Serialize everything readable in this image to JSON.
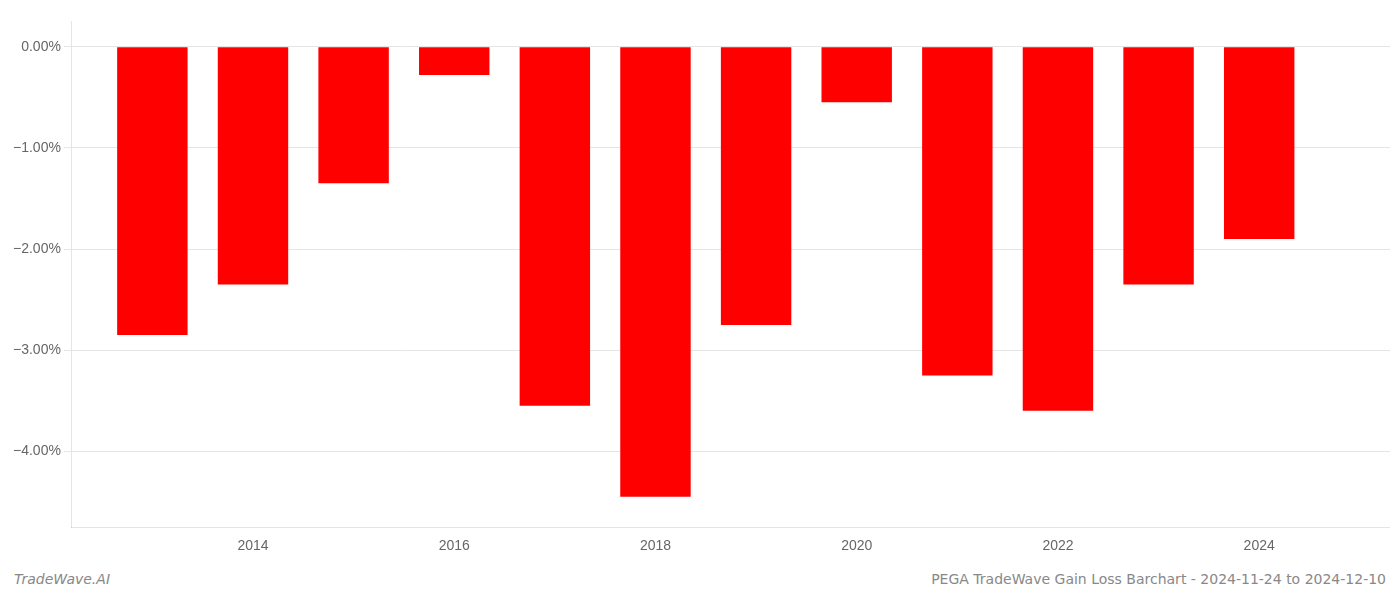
{
  "chart_data": {
    "type": "bar",
    "x": [
      2013,
      2014,
      2015,
      2016,
      2017,
      2018,
      2019,
      2020,
      2021,
      2022,
      2023,
      2024
    ],
    "values": [
      -2.85,
      -2.35,
      -1.35,
      -0.28,
      -3.55,
      -4.45,
      -2.75,
      -0.55,
      -3.25,
      -3.6,
      -2.35,
      -1.9
    ],
    "color": "#ff0000",
    "xlim": [
      2012.2,
      2025.3
    ],
    "xticks": [
      2014,
      2016,
      2018,
      2020,
      2022,
      2024
    ],
    "ylim": [
      -4.75,
      0.25
    ],
    "yticks": [
      {
        "value": 0.0,
        "label": "0.00%"
      },
      {
        "value": -1.0,
        "label": "−1.00%"
      },
      {
        "value": -2.0,
        "label": "−2.00%"
      },
      {
        "value": -3.0,
        "label": "−3.00%"
      },
      {
        "value": -4.0,
        "label": "−4.00%"
      }
    ],
    "grid": true,
    "annotations": [
      "TradeWave.AI",
      "PEGA TradeWave Gain Loss Barchart - 2024-11-24 to 2024-12-10"
    ]
  }
}
